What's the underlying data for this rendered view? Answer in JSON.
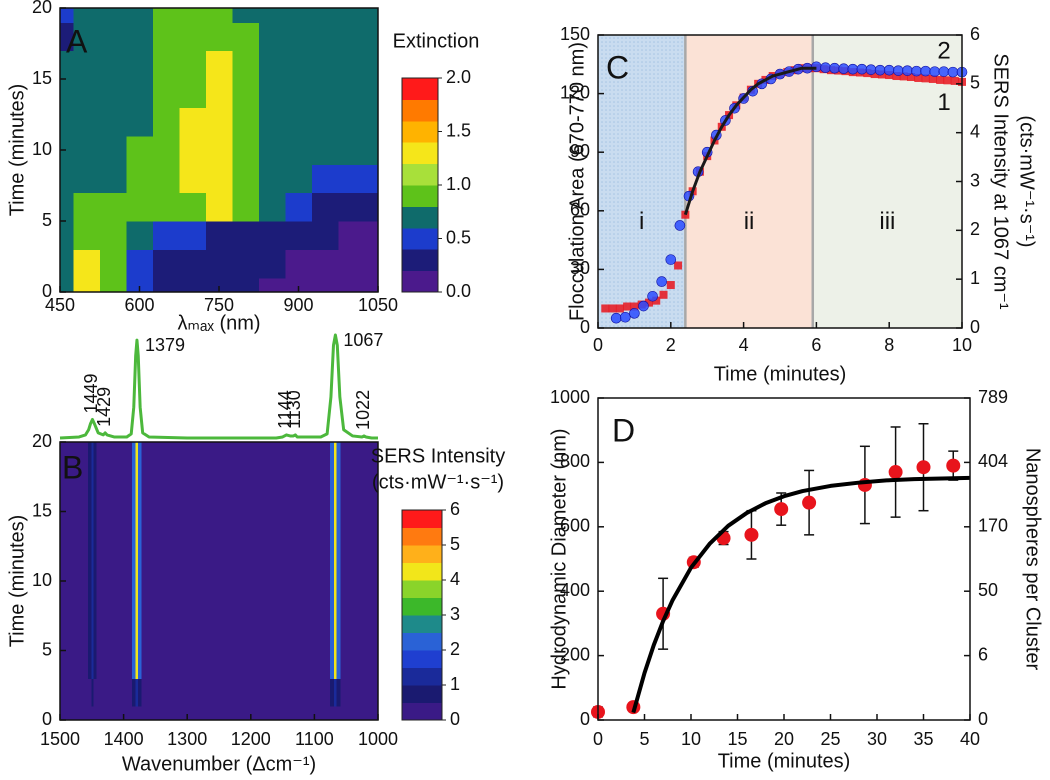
{
  "chart_data": [
    {
      "type": "contour",
      "panel": "A",
      "xlabel": "λₘₐₓ (nm)",
      "ylabel": "Time (minutes)",
      "xlim": [
        450,
        1050
      ],
      "ylim": [
        0,
        20
      ],
      "xticks": [
        450,
        600,
        750,
        900,
        1050
      ],
      "yticks": [
        0,
        5,
        10,
        15,
        20
      ],
      "x": [
        450,
        500,
        550,
        600,
        650,
        700,
        750,
        800,
        850,
        900,
        950,
        1000,
        1050
      ],
      "y": [
        0,
        2,
        4,
        6,
        8,
        10,
        12,
        14,
        16,
        18,
        20
      ],
      "z": [
        [
          0.7,
          1.3,
          0.9,
          0.5,
          0.3,
          0.3,
          0.3,
          0.3,
          0.1,
          0.1,
          0.1,
          0.1,
          0.1
        ],
        [
          0.7,
          1.3,
          0.9,
          0.5,
          0.3,
          0.3,
          0.3,
          0.3,
          0.3,
          0.1,
          0.1,
          0.1,
          0.1
        ],
        [
          0.7,
          0.9,
          0.9,
          0.7,
          0.5,
          0.5,
          0.3,
          0.3,
          0.3,
          0.3,
          0.3,
          0.1,
          0.1
        ],
        [
          0.7,
          0.9,
          0.9,
          0.9,
          0.9,
          0.9,
          1.3,
          0.9,
          0.7,
          0.5,
          0.3,
          0.3,
          0.3
        ],
        [
          0.7,
          0.7,
          0.7,
          0.9,
          0.9,
          1.3,
          1.3,
          0.9,
          0.7,
          0.7,
          0.5,
          0.5,
          0.5
        ],
        [
          0.7,
          0.7,
          0.7,
          0.9,
          0.9,
          1.3,
          1.3,
          0.9,
          0.7,
          0.7,
          0.7,
          0.7,
          0.7
        ],
        [
          0.7,
          0.7,
          0.7,
          0.7,
          0.9,
          1.3,
          1.3,
          0.9,
          0.7,
          0.7,
          0.7,
          0.7,
          0.7
        ],
        [
          0.7,
          0.7,
          0.7,
          0.7,
          0.9,
          0.9,
          1.3,
          0.9,
          0.7,
          0.7,
          0.7,
          0.7,
          0.7
        ],
        [
          0.7,
          0.7,
          0.7,
          0.7,
          0.9,
          0.9,
          1.3,
          0.9,
          0.7,
          0.7,
          0.7,
          0.7,
          0.7
        ],
        [
          0.3,
          0.7,
          0.7,
          0.7,
          0.9,
          0.9,
          0.9,
          0.9,
          0.7,
          0.7,
          0.7,
          0.7,
          0.7
        ],
        [
          0.5,
          0.7,
          0.7,
          0.7,
          0.9,
          0.9,
          0.9,
          0.7,
          0.7,
          0.7,
          0.7,
          0.7,
          0.7
        ]
      ],
      "colorbar": {
        "title": [
          "Extinction"
        ],
        "zlim": [
          0,
          2
        ],
        "ticks": [
          {
            "value": 0,
            "label": "0.0"
          },
          0.5,
          {
            "value": 1,
            "label": "1.0"
          },
          1.5,
          {
            "value": 2,
            "label": "2.0"
          }
        ],
        "colors": [
          "#4b1a8c",
          "#1c1c78",
          "#1c3ccc",
          "#0f6b6b",
          "#5ec21a",
          "#a8e03a",
          "#f5e61a",
          "#ffb300",
          "#ff7a00",
          "#ff1a1a"
        ]
      }
    },
    {
      "type": "contour",
      "panel": "B",
      "xlabel": "Wavenumber (Δcm⁻¹)",
      "ylabel": "Time (minutes)",
      "xlim": [
        1500,
        1000
      ],
      "ylim": [
        0,
        20
      ],
      "xticks": [
        1500,
        1400,
        1300,
        1200,
        1100,
        1000
      ],
      "yticks": [
        0,
        5,
        10,
        15,
        20
      ],
      "x": [
        1500,
        1460,
        1452,
        1449,
        1446,
        1440,
        1390,
        1383,
        1379,
        1375,
        1368,
        1080,
        1071,
        1067,
        1063,
        1055,
        1000
      ],
      "y": [
        0,
        2,
        4,
        6,
        8,
        10,
        12,
        14,
        16,
        18,
        20
      ],
      "z": [
        [
          0.1,
          0.1,
          0.1,
          0.1,
          0.1,
          0.1,
          0.1,
          0.1,
          0.1,
          0.1,
          0.1,
          0.1,
          0.1,
          0.1,
          0.1,
          0.1,
          0.1
        ],
        [
          0.1,
          0.1,
          0.1,
          0.6,
          0.1,
          0.1,
          0.1,
          0.6,
          1.2,
          0.6,
          0.1,
          0.1,
          0.6,
          1.2,
          0.6,
          0.1,
          0.1
        ],
        [
          0.1,
          0.1,
          0.6,
          1.2,
          0.6,
          0.1,
          0.1,
          2.2,
          4.2,
          2.2,
          0.1,
          0.1,
          2.2,
          4.2,
          2.2,
          0.1,
          0.1
        ],
        [
          0.1,
          0.1,
          0.6,
          1.2,
          0.6,
          0.1,
          0.1,
          2.2,
          4.2,
          2.2,
          0.1,
          0.1,
          2.2,
          4.2,
          2.2,
          0.1,
          0.1
        ],
        [
          0.1,
          0.1,
          0.6,
          1.2,
          0.6,
          0.1,
          0.1,
          2.2,
          4.2,
          2.2,
          0.1,
          0.1,
          2.2,
          4.2,
          2.2,
          0.1,
          0.1
        ],
        [
          0.1,
          0.1,
          0.6,
          1.2,
          0.6,
          0.1,
          0.1,
          2.2,
          4.2,
          2.2,
          0.1,
          0.1,
          2.2,
          4.2,
          2.2,
          0.1,
          0.1
        ],
        [
          0.1,
          0.1,
          0.6,
          1.2,
          0.6,
          0.1,
          0.1,
          2.2,
          4.2,
          2.2,
          0.1,
          0.1,
          2.2,
          4.2,
          2.2,
          0.1,
          0.1
        ],
        [
          0.1,
          0.1,
          0.6,
          1.2,
          0.6,
          0.1,
          0.1,
          2.2,
          4.2,
          2.2,
          0.1,
          0.1,
          2.2,
          4.2,
          2.2,
          0.1,
          0.1
        ],
        [
          0.1,
          0.1,
          0.6,
          1.2,
          0.6,
          0.1,
          0.1,
          2.2,
          4.2,
          2.2,
          0.1,
          0.1,
          2.2,
          4.2,
          2.2,
          0.1,
          0.1
        ],
        [
          0.1,
          0.1,
          0.6,
          1.2,
          0.6,
          0.1,
          0.1,
          2.2,
          4.2,
          2.2,
          0.1,
          0.1,
          2.2,
          4.2,
          2.2,
          0.1,
          0.1
        ],
        [
          0.1,
          0.1,
          0.6,
          1.2,
          0.6,
          0.1,
          0.1,
          2.2,
          4.2,
          2.2,
          0.1,
          0.1,
          2.2,
          4.2,
          2.2,
          0.1,
          0.1
        ]
      ],
      "colorbar": {
        "title": [
          "SERS Intensity",
          "(cts·mW⁻¹·s⁻¹)"
        ],
        "zlim": [
          0,
          6
        ],
        "ticks": [
          0,
          1,
          2,
          3,
          4,
          5,
          6
        ],
        "colors": [
          "#3a1a86",
          "#1a1a70",
          "#1a2a9a",
          "#1f3fd0",
          "#2a62d6",
          "#1e8a8a",
          "#3cb82a",
          "#8ad42a",
          "#f2e61a",
          "#ffb01a",
          "#ff7a10",
          "#ff1a1a"
        ]
      },
      "spectrum": {
        "color": "#4cb83c",
        "x": [
          1500,
          1470,
          1460,
          1455,
          1452,
          1449,
          1446,
          1440,
          1432,
          1429,
          1426,
          1415,
          1395,
          1388,
          1384,
          1381,
          1379,
          1377,
          1374,
          1370,
          1360,
          1300,
          1200,
          1160,
          1150,
          1144,
          1138,
          1133,
          1130,
          1127,
          1120,
          1090,
          1080,
          1074,
          1070,
          1067,
          1064,
          1060,
          1054,
          1040,
          1025,
          1022,
          1019,
          1010,
          1000
        ],
        "values": [
          0,
          1,
          3,
          8,
          14,
          18,
          14,
          5,
          3,
          5,
          3,
          1,
          1,
          4,
          30,
          80,
          95,
          80,
          30,
          5,
          1,
          0,
          0,
          0,
          1,
          3,
          2,
          2,
          3,
          1,
          1,
          1,
          4,
          40,
          90,
          100,
          90,
          40,
          8,
          2,
          1,
          2,
          1,
          0,
          0
        ]
      },
      "peak_labels": [
        1449,
        1429,
        1379,
        1144,
        1130,
        1022,
        1067
      ]
    },
    {
      "type": "scatter",
      "panel": "C",
      "xlabel": "Time (minutes)",
      "ylabel": "Flocculation Area (670-770 nm)",
      "ylabel_color": "#e8141c",
      "y2label": [
        "SERS Intensity at 1067 cm⁻¹",
        "(cts·mW⁻¹·s⁻¹)"
      ],
      "y2label_color": "#1a1aff",
      "xlim": [
        0,
        10
      ],
      "ylim": [
        0,
        150
      ],
      "y2lim": [
        0,
        6
      ],
      "xticks": [
        0,
        2,
        4,
        6,
        8,
        10
      ],
      "yticks": [
        0,
        30,
        60,
        90,
        120,
        150
      ],
      "y2ticks": [
        0,
        1,
        2,
        3,
        4,
        5,
        6
      ],
      "regions": [
        {
          "label": "i",
          "x": [
            0,
            2.4
          ],
          "color": "#c9dcf0"
        },
        {
          "label": "ii",
          "x": [
            2.4,
            5.9
          ],
          "color": "#fbe2d6"
        },
        {
          "label": "iii",
          "x": [
            5.9,
            10
          ],
          "color": "#edf1e8"
        }
      ],
      "series": [
        {
          "name": "1",
          "color": "#e8141c",
          "marker": "square",
          "x": [
            0.2,
            0.4,
            0.6,
            0.8,
            1.0,
            1.2,
            1.4,
            1.6,
            1.8,
            2.0,
            2.2,
            2.4,
            2.6,
            2.8,
            3.0,
            3.2,
            3.4,
            3.6,
            3.8,
            4.0,
            4.2,
            4.4,
            4.6,
            4.8,
            5.0,
            5.2,
            5.4,
            5.6,
            5.8,
            6.0,
            6.2,
            6.4,
            6.6,
            6.8,
            7.0,
            7.2,
            7.4,
            7.6,
            7.8,
            8.0,
            8.2,
            8.4,
            8.6,
            8.8,
            9.0,
            9.2,
            9.4,
            9.6,
            9.8,
            10.0
          ],
          "values": [
            10,
            10,
            10,
            11,
            11,
            12,
            13,
            14,
            17,
            22,
            32,
            58,
            70,
            80,
            88,
            96,
            103,
            109,
            114,
            118,
            122,
            125,
            127,
            129,
            130,
            131,
            132,
            133,
            133,
            133,
            132.5,
            132,
            131.8,
            131.5,
            131,
            130.8,
            130.5,
            130,
            129.8,
            129.5,
            129,
            128.8,
            128.5,
            128,
            127.8,
            127.5,
            127,
            126.8,
            126.5,
            126
          ]
        },
        {
          "name": "2",
          "color": "#2a4cff",
          "marker": "circle",
          "axis": "y2",
          "x": [
            0.5,
            0.75,
            1.0,
            1.25,
            1.5,
            1.75,
            2.0,
            2.25,
            2.5,
            2.75,
            3.0,
            3.25,
            3.5,
            3.75,
            4.0,
            4.25,
            4.5,
            4.75,
            5.0,
            5.25,
            5.5,
            5.75,
            6.0,
            6.25,
            6.5,
            6.75,
            7.0,
            7.25,
            7.5,
            7.75,
            8.0,
            8.25,
            8.5,
            8.75,
            9.0,
            9.25,
            9.5,
            9.75,
            10.0
          ],
          "values": [
            0.2,
            0.22,
            0.3,
            0.45,
            0.65,
            0.95,
            1.4,
            2.1,
            2.7,
            3.2,
            3.6,
            3.95,
            4.25,
            4.5,
            4.7,
            4.85,
            5.0,
            5.1,
            5.2,
            5.25,
            5.3,
            5.32,
            5.35,
            5.33,
            5.32,
            5.31,
            5.3,
            5.3,
            5.29,
            5.28,
            5.28,
            5.27,
            5.27,
            5.26,
            5.26,
            5.25,
            5.25,
            5.24,
            5.24
          ]
        },
        {
          "color": "#1a1a1a",
          "marker": "line",
          "x": [
            2.4,
            2.6,
            2.8,
            3.0,
            3.2,
            3.4,
            3.6,
            3.8,
            4.0,
            4.2,
            4.4,
            4.6,
            4.8,
            5.0,
            5.2,
            5.4,
            5.6,
            5.8,
            6.0
          ],
          "values": [
            58,
            70,
            80,
            88,
            96,
            103,
            109,
            114,
            118,
            122,
            125,
            127,
            129,
            130,
            131,
            132,
            133,
            133,
            133
          ]
        }
      ]
    },
    {
      "type": "scatter",
      "panel": "D",
      "xlabel": "Time (minutes)",
      "ylabel": "Hydrodynamic Diameter (nm)",
      "y2label": [
        "Nanospheres per Cluster"
      ],
      "xlim": [
        0,
        40
      ],
      "ylim": [
        0,
        1000
      ],
      "y2lim": [
        0,
        789
      ],
      "y2scale": "cube",
      "xticks": [
        0,
        5,
        10,
        15,
        20,
        25,
        30,
        35,
        40
      ],
      "yticks": [
        0,
        200,
        400,
        600,
        800,
        1000
      ],
      "y2ticks": [
        0,
        {
          "value": 6.312,
          "label": "6"
        },
        {
          "value": 50.496,
          "label": "50"
        },
        {
          "value": 170.424,
          "label": "170"
        },
        {
          "value": 403.968,
          "label": "404"
        },
        789
      ],
      "series": [
        {
          "color": "#e8141c",
          "marker": "dot",
          "error_color": "#111",
          "x": [
            0,
            3.8,
            7,
            10.3,
            13.5,
            16.5,
            19.7,
            22.7,
            28.7,
            32,
            35,
            38.2
          ],
          "values": [
            25,
            40,
            330,
            490,
            565,
            575,
            655,
            675,
            730,
            770,
            785,
            790
          ],
          "errors": [
            15,
            10,
            110,
            15,
            20,
            75,
            50,
            100,
            120,
            140,
            135,
            45
          ]
        },
        {
          "color": "#000000",
          "marker": "line",
          "x": [
            3.8,
            5,
            6,
            7,
            8,
            10,
            12,
            14,
            16,
            18,
            20,
            22,
            25,
            28,
            31,
            34,
            37,
            40
          ],
          "values": [
            23,
            146,
            233,
            307,
            371,
            473,
            547,
            603,
            643,
            673,
            695,
            711,
            727,
            737,
            744,
            748,
            750,
            752
          ]
        }
      ]
    }
  ]
}
